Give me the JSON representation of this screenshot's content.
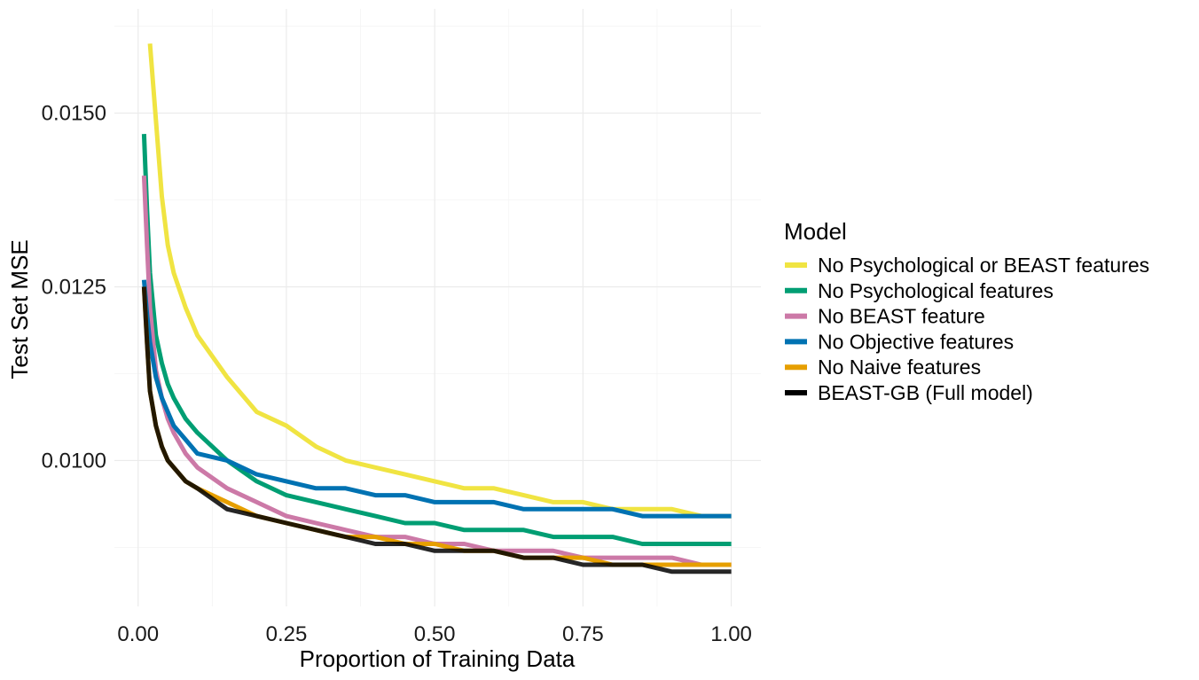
{
  "chart_data": {
    "type": "line",
    "title": "",
    "xlabel": "Proportion of Training Data",
    "ylabel": "Test Set MSE",
    "xlim": [
      -0.04,
      1.05
    ],
    "ylim": [
      0.0079,
      0.0165
    ],
    "x_ticks": [
      0.0,
      0.25,
      0.5,
      0.75,
      1.0
    ],
    "x_tick_labels": [
      "0.00",
      "0.25",
      "0.50",
      "0.75",
      "1.00"
    ],
    "y_ticks": [
      0.01,
      0.0125,
      0.015
    ],
    "y_tick_labels": [
      "0.0100",
      "0.0125",
      "0.0150"
    ],
    "grid": true,
    "legend": {
      "title": "Model",
      "position": "right"
    },
    "series": [
      {
        "name": "No Psychological or BEAST features",
        "color": "#F0E442",
        "x": [
          0.02,
          0.03,
          0.04,
          0.05,
          0.06,
          0.08,
          0.1,
          0.15,
          0.2,
          0.25,
          0.3,
          0.35,
          0.4,
          0.45,
          0.5,
          0.55,
          0.6,
          0.65,
          0.7,
          0.75,
          0.8,
          0.85,
          0.9,
          0.95,
          1.0
        ],
        "y": [
          0.016,
          0.0149,
          0.0138,
          0.0131,
          0.0127,
          0.0122,
          0.0118,
          0.0112,
          0.0107,
          0.0105,
          0.0102,
          0.01,
          0.0099,
          0.0098,
          0.0097,
          0.0096,
          0.0096,
          0.0095,
          0.0094,
          0.0094,
          0.0093,
          0.0093,
          0.0093,
          0.0092,
          0.0092
        ]
      },
      {
        "name": "No Psychological features",
        "color": "#009E73",
        "x": [
          0.01,
          0.015,
          0.02,
          0.03,
          0.04,
          0.05,
          0.06,
          0.08,
          0.1,
          0.15,
          0.2,
          0.25,
          0.3,
          0.35,
          0.4,
          0.45,
          0.5,
          0.55,
          0.6,
          0.65,
          0.7,
          0.75,
          0.8,
          0.85,
          0.9,
          0.95,
          1.0
        ],
        "y": [
          0.0147,
          0.0136,
          0.0127,
          0.0118,
          0.0114,
          0.0111,
          0.0109,
          0.0106,
          0.0104,
          0.01,
          0.0097,
          0.0095,
          0.0094,
          0.0093,
          0.0092,
          0.0091,
          0.0091,
          0.009,
          0.009,
          0.009,
          0.0089,
          0.0089,
          0.0089,
          0.0088,
          0.0088,
          0.0088,
          0.0088
        ]
      },
      {
        "name": "No BEAST feature",
        "color": "#CC79A7",
        "x": [
          0.01,
          0.015,
          0.02,
          0.03,
          0.04,
          0.05,
          0.06,
          0.08,
          0.1,
          0.15,
          0.2,
          0.25,
          0.3,
          0.35,
          0.4,
          0.45,
          0.5,
          0.55,
          0.6,
          0.65,
          0.7,
          0.75,
          0.8,
          0.85,
          0.9,
          0.95,
          1.0
        ],
        "y": [
          0.0141,
          0.0131,
          0.0122,
          0.0113,
          0.0109,
          0.0106,
          0.0104,
          0.0101,
          0.0099,
          0.0096,
          0.0094,
          0.0092,
          0.0091,
          0.009,
          0.0089,
          0.0089,
          0.0088,
          0.0088,
          0.0087,
          0.0087,
          0.0087,
          0.0086,
          0.0086,
          0.0086,
          0.0086,
          0.0085,
          0.0085
        ]
      },
      {
        "name": "No Objective features",
        "color": "#0072B2",
        "x": [
          0.01,
          0.015,
          0.02,
          0.03,
          0.04,
          0.05,
          0.06,
          0.08,
          0.1,
          0.15,
          0.2,
          0.25,
          0.3,
          0.35,
          0.4,
          0.45,
          0.5,
          0.55,
          0.6,
          0.65,
          0.7,
          0.75,
          0.8,
          0.85,
          0.9,
          0.95,
          1.0
        ],
        "y": [
          0.0126,
          0.0121,
          0.0117,
          0.0112,
          0.0109,
          0.0107,
          0.0105,
          0.0103,
          0.0101,
          0.01,
          0.0098,
          0.0097,
          0.0096,
          0.0096,
          0.0095,
          0.0095,
          0.0094,
          0.0094,
          0.0094,
          0.0093,
          0.0093,
          0.0093,
          0.0093,
          0.0092,
          0.0092,
          0.0092,
          0.0092
        ]
      },
      {
        "name": "No Naive features",
        "color": "#E69F00",
        "x": [
          0.01,
          0.015,
          0.02,
          0.03,
          0.04,
          0.05,
          0.06,
          0.08,
          0.1,
          0.15,
          0.2,
          0.25,
          0.3,
          0.35,
          0.4,
          0.45,
          0.5,
          0.55,
          0.6,
          0.65,
          0.7,
          0.75,
          0.8,
          0.85,
          0.9,
          0.95,
          1.0
        ],
        "y": [
          0.0125,
          0.0117,
          0.011,
          0.0105,
          0.0102,
          0.01,
          0.0099,
          0.0097,
          0.0096,
          0.0094,
          0.0092,
          0.0091,
          0.009,
          0.0089,
          0.0089,
          0.0088,
          0.0088,
          0.0087,
          0.0087,
          0.0086,
          0.0086,
          0.0086,
          0.0085,
          0.0085,
          0.0085,
          0.0085,
          0.0085
        ]
      },
      {
        "name": "BEAST-GB (Full model)",
        "color": "#000000",
        "x": [
          0.01,
          0.015,
          0.02,
          0.03,
          0.04,
          0.05,
          0.06,
          0.08,
          0.1,
          0.15,
          0.2,
          0.25,
          0.3,
          0.35,
          0.4,
          0.45,
          0.5,
          0.55,
          0.6,
          0.65,
          0.7,
          0.75,
          0.8,
          0.85,
          0.9,
          0.95,
          1.0
        ],
        "y": [
          0.0125,
          0.0117,
          0.011,
          0.0105,
          0.0102,
          0.01,
          0.0099,
          0.0097,
          0.0096,
          0.0093,
          0.0092,
          0.0091,
          0.009,
          0.0089,
          0.0088,
          0.0088,
          0.0087,
          0.0087,
          0.0087,
          0.0086,
          0.0086,
          0.0085,
          0.0085,
          0.0085,
          0.0084,
          0.0084,
          0.0084
        ]
      }
    ]
  }
}
